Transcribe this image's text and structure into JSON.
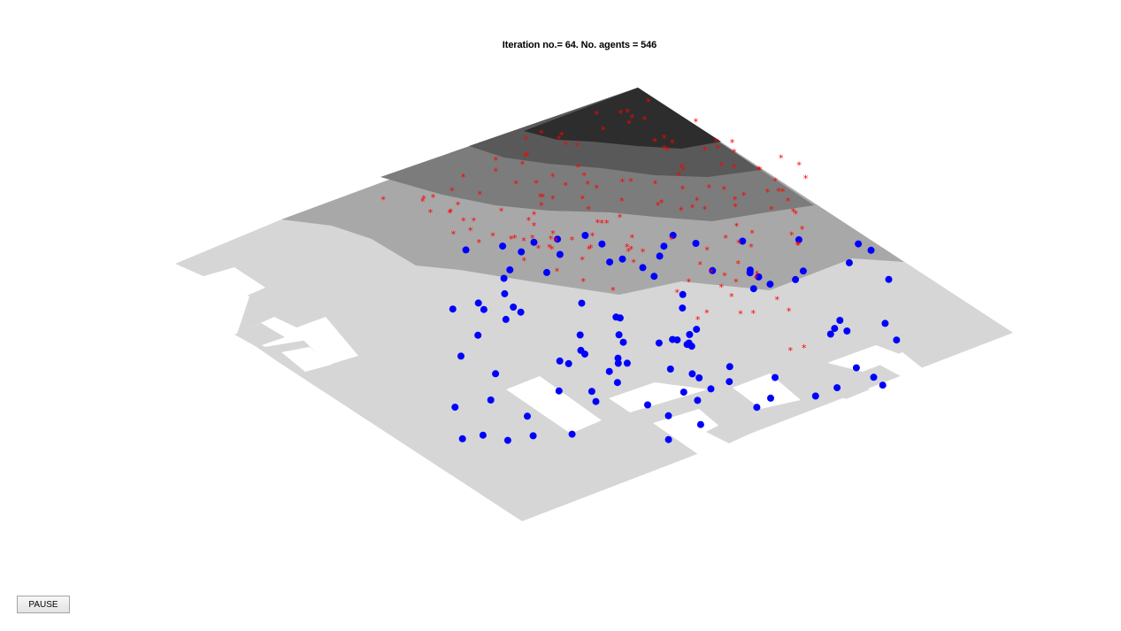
{
  "title": "Iteration no.= 64.  No. agents = 546",
  "pause_button": {
    "label": "PAUSE"
  },
  "colors": {
    "background": "#ffffff",
    "terrain_levels": [
      "#d6d6d6",
      "#a8a8a8",
      "#7c7c7c",
      "#595959",
      "#2d2d2d"
    ],
    "agent_type_a": "#ff0000",
    "agent_type_b": "#0000ff"
  },
  "legend": {
    "agent_type_a_marker": "red-asterisk",
    "agent_type_b_marker": "blue-dot"
  }
}
